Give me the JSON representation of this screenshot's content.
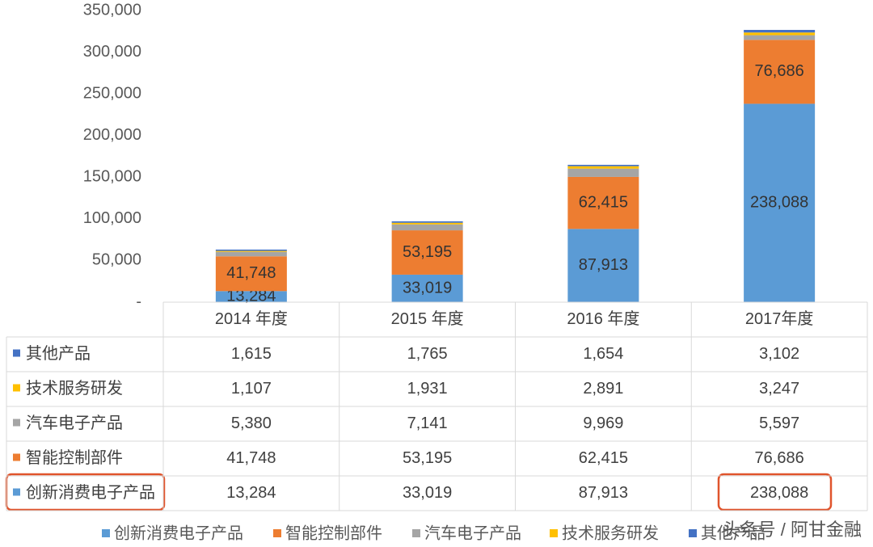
{
  "chart_data": {
    "type": "stacked_bar_with_table",
    "categories": [
      "2014 年度",
      "2015 年度",
      "2016 年度",
      "2017年度"
    ],
    "series": [
      {
        "name": "创新消费电子产品",
        "color": "#5b9bd5",
        "values": [
          13284,
          33019,
          87913,
          238088
        ],
        "value_labels": [
          "13,284",
          "33,019",
          "87,913",
          "238,088"
        ],
        "show_labels": true
      },
      {
        "name": "智能控制部件",
        "color": "#ed7d31",
        "values": [
          41748,
          53195,
          62415,
          76686
        ],
        "value_labels": [
          "41,748",
          "53,195",
          "62,415",
          "76,686"
        ],
        "show_labels": true
      },
      {
        "name": "汽车电子产品",
        "color": "#a5a5a5",
        "values": [
          5380,
          7141,
          9969,
          5597
        ],
        "value_labels": [
          "5,380",
          "7,141",
          "9,969",
          "5,597"
        ],
        "show_labels": false
      },
      {
        "name": "技术服务研发",
        "color": "#ffc000",
        "values": [
          1107,
          1931,
          2891,
          3247
        ],
        "value_labels": [
          "1,107",
          "1,931",
          "2,891",
          "3,247"
        ],
        "show_labels": false
      },
      {
        "name": "其他产品",
        "color": "#4472c4",
        "values": [
          1615,
          1765,
          1654,
          3102
        ],
        "value_labels": [
          "1,615",
          "1,765",
          "1,654",
          "3,102"
        ],
        "show_labels": false
      }
    ],
    "ylim": [
      0,
      350000
    ],
    "yticks": [
      {
        "value": 0,
        "label": "-"
      },
      {
        "value": 50000,
        "label": "50,000"
      },
      {
        "value": 100000,
        "label": "100,000"
      },
      {
        "value": 150000,
        "label": "150,000"
      },
      {
        "value": 200000,
        "label": "200,000"
      },
      {
        "value": 250000,
        "label": "250,000"
      },
      {
        "value": 300000,
        "label": "300,000"
      },
      {
        "value": 350000,
        "label": "350,000"
      }
    ],
    "watermark": "头条号 / 阿甘金融"
  }
}
